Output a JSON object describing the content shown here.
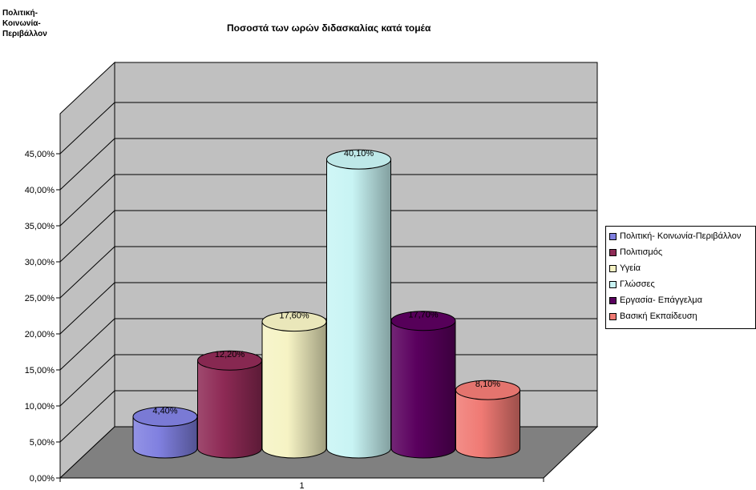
{
  "chart_data": {
    "type": "bar",
    "title": "Ποσοστά των ωρών διδασκαλίας κατά τομέα",
    "corner_label": "Πολιτική-\nΚοινωνία-\nΠεριβάλλον",
    "categories": [
      "1"
    ],
    "ylim": [
      0,
      45
    ],
    "y_ticks": [
      "0,00%",
      "5,00%",
      "10,00%",
      "15,00%",
      "20,00%",
      "25,00%",
      "30,00%",
      "35,00%",
      "40,00%",
      "45,00%"
    ],
    "grid": true,
    "legend_position": "right",
    "series": [
      {
        "name": "Πολιτική- Κοινωνία-Περιβάλλον",
        "values": [
          4.4
        ],
        "label": "4,40%",
        "color": "#8080e0"
      },
      {
        "name": "Πολιτισμός",
        "values": [
          12.2
        ],
        "label": "12,20%",
        "color": "#8e2a55"
      },
      {
        "name": "Υγεία",
        "values": [
          17.6
        ],
        "label": "17,60%",
        "color": "#f6f3c4"
      },
      {
        "name": "Γλώσσες",
        "values": [
          40.1
        ],
        "label": "40,10%",
        "color": "#c8f4f4"
      },
      {
        "name": "Εργασία- Επάγγελμα",
        "values": [
          17.7
        ],
        "label": "17,70%",
        "color": "#5a005e"
      },
      {
        "name": "Βασική Εκπαίδευση",
        "values": [
          8.1
        ],
        "label": "8,10%",
        "color": "#f07a74"
      }
    ],
    "colors": {
      "wall": "#c0c0c0",
      "floor": "#808080",
      "grid": "#000000"
    }
  }
}
